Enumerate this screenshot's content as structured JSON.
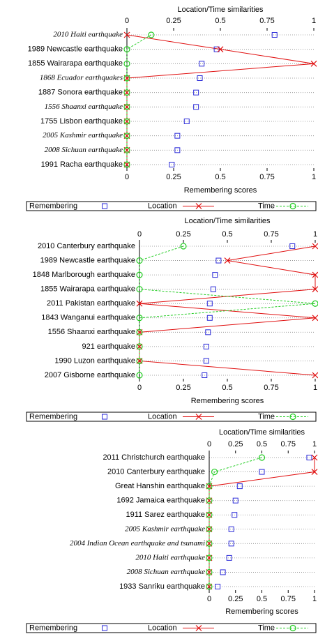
{
  "chart_data": [
    {
      "type": "dot",
      "xlabel": "Remembering scores",
      "x2label": "Location/Time similarities",
      "categories": [
        "2010 Haiti earthquake",
        "1989 Newcastle earthquake",
        "1855 Wairarapa earthquake",
        "1868 Ecuador earthquakes",
        "1887 Sonora earthquake",
        "1556 Shaanxi earthquake",
        "1755 Lisbon earthquake",
        "2005 Kashmir earthquake",
        "2008 Sichuan earthquake",
        "1991 Racha earthquake"
      ],
      "italic": [
        true,
        false,
        false,
        true,
        false,
        true,
        false,
        true,
        true,
        false
      ],
      "xlim": [
        0,
        1
      ],
      "xticks": [
        0,
        0.25,
        0.5,
        0.75,
        1
      ],
      "x2lim": [
        0,
        1
      ],
      "x2ticks": [
        0,
        0.25,
        0.5,
        0.75,
        1
      ],
      "grid": true,
      "legend": "bottom",
      "series": [
        {
          "name": "Remembering",
          "color": "#2a2ad8",
          "marker": "square",
          "line": "none",
          "axis": "x",
          "values": [
            0.79,
            0.48,
            0.4,
            0.39,
            0.37,
            0.37,
            0.32,
            0.27,
            0.27,
            0.24
          ]
        },
        {
          "name": "Location",
          "color": "#e01010",
          "marker": "cross",
          "line": "solid",
          "axis": "x2",
          "values": [
            0,
            0.5,
            1,
            0,
            0,
            0,
            0,
            0,
            0,
            0
          ]
        },
        {
          "name": "Time",
          "color": "#22cc22",
          "marker": "circle",
          "line": "dashed",
          "axis": "x2",
          "values": [
            0.13,
            0,
            0,
            0,
            0,
            0,
            0,
            0,
            0,
            0
          ]
        }
      ]
    },
    {
      "type": "dot",
      "xlabel": "Remembering scores",
      "x2label": "Location/Time similarities",
      "categories": [
        "2010 Canterbury earthquake",
        "1989 Newcastle earthquake",
        "1848 Marlborough earthquake",
        "1855 Wairarapa earthquake",
        "2011 Pakistan earthquake",
        "1843 Wanganui earthquake",
        "1556 Shaanxi earthquake",
        "921 earthquake",
        "1990 Luzon earthquake",
        "2007 Gisborne earthquake"
      ],
      "italic": [
        false,
        false,
        false,
        false,
        false,
        false,
        false,
        false,
        false,
        false
      ],
      "xlim": [
        0,
        1
      ],
      "xticks": [
        0,
        0.25,
        0.5,
        0.75,
        1
      ],
      "x2lim": [
        0,
        1
      ],
      "x2ticks": [
        0,
        0.25,
        0.5,
        0.75,
        1
      ],
      "grid": true,
      "legend": "bottom",
      "series": [
        {
          "name": "Remembering",
          "color": "#2a2ad8",
          "marker": "square",
          "line": "none",
          "axis": "x",
          "values": [
            0.87,
            0.45,
            0.43,
            0.42,
            0.4,
            0.4,
            0.39,
            0.38,
            0.38,
            0.37
          ]
        },
        {
          "name": "Location",
          "color": "#e01010",
          "marker": "cross",
          "line": "solid",
          "axis": "x2",
          "values": [
            1,
            0.5,
            1,
            1,
            0,
            1,
            0,
            0,
            0,
            1
          ]
        },
        {
          "name": "Time",
          "color": "#22cc22",
          "marker": "circle",
          "line": "dashed",
          "axis": "x2",
          "values": [
            0.25,
            0,
            0,
            0,
            1,
            0,
            0,
            0,
            0,
            0
          ]
        }
      ]
    },
    {
      "type": "dot",
      "xlabel": "Remembering scores",
      "x2label": "Location/Time similarities",
      "categories": [
        "2011 Christchurch earthquake",
        "2010 Canterbury earthquake",
        "Great Hanshin earthquake",
        "1692 Jamaica earthquake",
        "1911 Sarez earthquake",
        "2005 Kashmir earthquake",
        "2004 Indian Ocean earthquake and tsunami",
        "2010 Haiti earthquake",
        "2008 Sichuan earthquake",
        "1933 Sanriku earthquake"
      ],
      "italic": [
        false,
        false,
        false,
        false,
        false,
        true,
        true,
        true,
        true,
        false
      ],
      "xlim": [
        0,
        1
      ],
      "xticks": [
        0,
        0.25,
        0.5,
        0.75,
        1
      ],
      "x2lim": [
        0,
        1
      ],
      "x2ticks": [
        0,
        0.25,
        0.5,
        0.75,
        1
      ],
      "grid": true,
      "legend": "bottom",
      "series": [
        {
          "name": "Remembering",
          "color": "#2a2ad8",
          "marker": "square",
          "line": "none",
          "axis": "x",
          "values": [
            0.95,
            0.5,
            0.29,
            0.25,
            0.24,
            0.21,
            0.21,
            0.19,
            0.13,
            0.08
          ]
        },
        {
          "name": "Location",
          "color": "#e01010",
          "marker": "cross",
          "line": "solid",
          "axis": "x2",
          "values": [
            1,
            1,
            0,
            0,
            0,
            0,
            0,
            0,
            0,
            0
          ]
        },
        {
          "name": "Time",
          "color": "#22cc22",
          "marker": "circle",
          "line": "dashed",
          "axis": "x2",
          "values": [
            0.5,
            0.05,
            0,
            0,
            0,
            0,
            0,
            0,
            0,
            0
          ]
        }
      ]
    }
  ]
}
